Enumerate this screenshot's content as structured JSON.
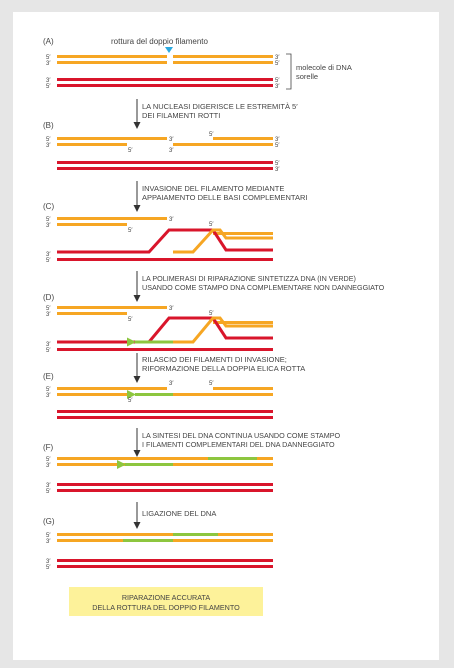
{
  "colors": {
    "orange": "#f6a623",
    "red": "#d9152b",
    "green": "#8dc63f",
    "note_bg": "#fdf29a",
    "marker": "#29a9e0",
    "text": "#444444",
    "background": "#e6e6e6"
  },
  "top_label": "rottura del doppio filamento",
  "sister_label_line1": "molecole di DNA",
  "sister_label_line2": "sorelle",
  "primes": {
    "five": "5′",
    "three": "3′"
  },
  "stages": [
    {
      "id": "A",
      "label": "(A)"
    },
    {
      "id": "B",
      "label": "(B)",
      "step_line1": "LA NUCLEASI DIGERISCE LE ESTREMITÀ 5′",
      "step_line2": "DEI FILAMENTI ROTTI"
    },
    {
      "id": "C",
      "label": "(C)",
      "step_line1": "INVASIONE DEL FILAMENTO MEDIANTE",
      "step_line2": "APPAIAMENTO DELLE BASI COMPLEMENTARI"
    },
    {
      "id": "D",
      "label": "(D)",
      "step_line1": "LA POLIMERASI DI RIPARAZIONE SINTETIZZA DNA (IN VERDE)",
      "step_line2": "USANDO COME STAMPO DNA COMPLEMENTARE NON DANNEGGIATO"
    },
    {
      "id": "E",
      "label": "(E)",
      "step_line1": "RILASCIO DEI FILAMENTI DI INVASIONE;",
      "step_line2": "RIFORMAZIONE DELLA DOPPIA ELICA ROTTA"
    },
    {
      "id": "F",
      "label": "(F)",
      "step_line1": "LA SINTESI DEL DNA CONTINUA USANDO COME STAMPO",
      "step_line2": "I FILAMENTI COMPLEMENTARI DEL DNA DANNEGGIATO"
    },
    {
      "id": "G",
      "label": "(G)",
      "step_line1": "LIGAZIONE DEL DNA"
    }
  ],
  "result_line1": "RIPARAZIONE ACCURATA",
  "result_line2": "DELLA ROTTURA DEL DOPPIO FILAMENTO"
}
